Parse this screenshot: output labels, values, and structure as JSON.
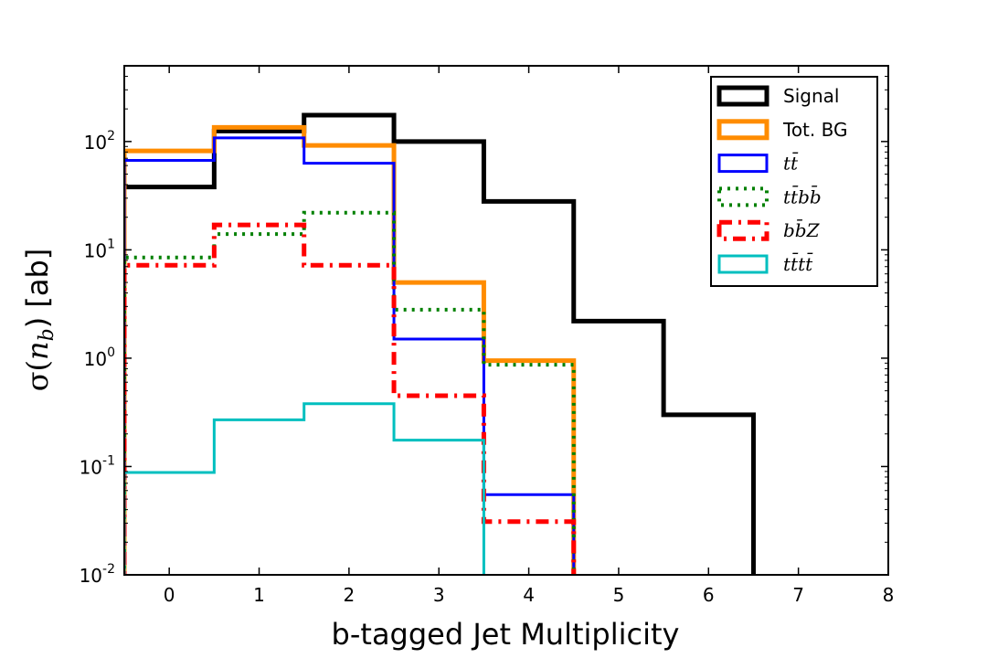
{
  "chart_data": {
    "type": "step-histogram",
    "xlabel": "b-tagged Jet Multiplicity",
    "ylabel_prefix": "σ(",
    "ylabel_var": "n",
    "ylabel_sub": "b",
    "ylabel_suffix": ") [ab]",
    "xlim": [
      -0.5,
      8
    ],
    "ylim": [
      0.01,
      500
    ],
    "yscale": "log",
    "x_ticks": [
      {
        "value": 0,
        "label": "0"
      },
      {
        "value": 1,
        "label": "1"
      },
      {
        "value": 2,
        "label": "2"
      },
      {
        "value": 3,
        "label": "3"
      },
      {
        "value": 4,
        "label": "4"
      },
      {
        "value": 5,
        "label": "5"
      },
      {
        "value": 6,
        "label": "6"
      },
      {
        "value": 7,
        "label": "7"
      },
      {
        "value": 8,
        "label": "8"
      }
    ],
    "y_ticks": [
      {
        "value": 0.01,
        "base": "10",
        "exp": "-2"
      },
      {
        "value": 0.1,
        "base": "10",
        "exp": "-1"
      },
      {
        "value": 1,
        "base": "10",
        "exp": "0"
      },
      {
        "value": 10,
        "base": "10",
        "exp": "1"
      },
      {
        "value": 100,
        "base": "10",
        "exp": "2"
      }
    ],
    "bin_edges": [
      -0.5,
      0.5,
      1.5,
      2.5,
      3.5,
      4.5,
      5.5,
      6.5
    ],
    "legend_position": "top-right",
    "series": [
      {
        "name": "Signal",
        "label": "Signal",
        "math": false,
        "color": "#000000",
        "width": 5,
        "dash": "",
        "values": [
          38,
          125,
          175,
          100,
          28,
          2.2,
          0.3
        ]
      },
      {
        "name": "Tot. BG",
        "label": "Tot. BG",
        "math": false,
        "color": "#ff8c00",
        "width": 5,
        "dash": "",
        "values": [
          82,
          135,
          92,
          5,
          0.95,
          0,
          0
        ]
      },
      {
        "name": "ttbar",
        "label": "tt̄",
        "math": true,
        "color": "#0000ff",
        "width": 3,
        "dash": "",
        "values": [
          67,
          108,
          63,
          1.5,
          0.055,
          0,
          0
        ]
      },
      {
        "name": "ttbarbbbar",
        "label": "tt̄bb̄",
        "math": true,
        "color": "#008000",
        "width": 4,
        "dash": "3 6",
        "values": [
          8.5,
          14,
          22,
          2.8,
          0.87,
          0,
          0
        ]
      },
      {
        "name": "bbbarZ",
        "label": "bb̄Z",
        "math": true,
        "color": "#ff0000",
        "width": 5,
        "dash": "14 7 3 7",
        "values": [
          7.2,
          17,
          7.2,
          0.45,
          0.031,
          0,
          0
        ]
      },
      {
        "name": "ttbarttbar",
        "label": "tt̄tt̄",
        "math": true,
        "color": "#00bfbf",
        "width": 3,
        "dash": "",
        "values": [
          0.088,
          0.27,
          0.38,
          0.175,
          0,
          0,
          0
        ]
      }
    ]
  }
}
